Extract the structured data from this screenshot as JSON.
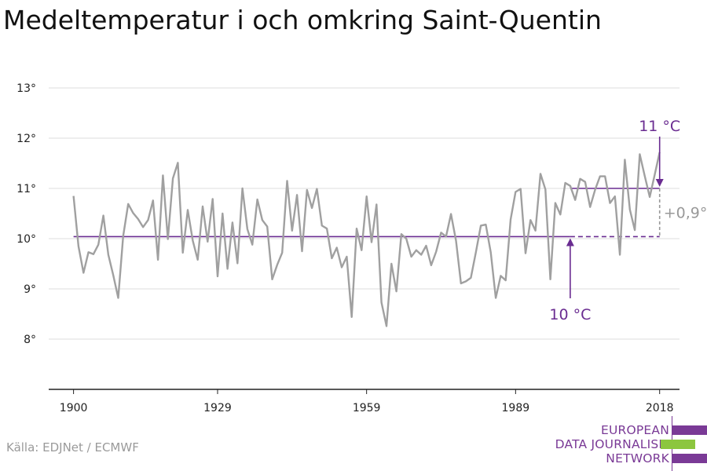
{
  "title": "Medeltemperatur i och omkring Saint-Quentin",
  "source": "Källa: EDJNet / ECMWF",
  "logo": {
    "lines": [
      "EUROPEAN",
      "DATA JOURNALISM",
      "NETWORK"
    ],
    "colors": {
      "purple": "#7a3a96",
      "green": "#8cc63f"
    }
  },
  "colors": {
    "series": "#a0a0a0",
    "reference": "#6a2c91",
    "grid": "#dddddd",
    "axis": "#222222",
    "delta": "#999999"
  },
  "chart_data": {
    "type": "line",
    "xlim": [
      1895,
      2022
    ],
    "ylim": [
      7,
      13.5
    ],
    "x_ticks": [
      1900,
      1929,
      1959,
      1989,
      2018
    ],
    "y_ticks": [
      8,
      9,
      10,
      11,
      12,
      13
    ],
    "y_tick_labels": [
      "8°",
      "9°",
      "10°",
      "11°",
      "12°",
      "13°"
    ],
    "grid": true,
    "series": [
      {
        "x_start": 1900,
        "values": [
          10.85,
          9.85,
          9.32,
          9.73,
          9.69,
          9.88,
          10.46,
          9.68,
          9.27,
          8.82,
          10.05,
          10.69,
          10.51,
          10.39,
          10.23,
          10.37,
          10.76,
          9.58,
          11.26,
          9.99,
          11.2,
          11.51,
          9.72,
          10.57,
          9.96,
          9.58,
          10.64,
          9.94,
          10.79,
          9.25,
          10.5,
          9.4,
          10.32,
          9.51,
          11.0,
          10.19,
          9.88,
          10.78,
          10.37,
          10.24,
          9.19,
          9.48,
          9.72,
          11.15,
          10.16,
          10.87,
          9.75,
          10.97,
          10.61,
          10.99,
          10.26,
          10.2,
          9.61,
          9.82,
          9.43,
          9.64,
          8.44,
          10.2,
          9.77,
          10.84,
          9.93,
          10.68,
          8.73,
          8.26,
          9.5,
          8.95,
          10.09,
          10.0,
          9.64,
          9.77,
          9.68,
          9.86,
          9.47,
          9.74,
          10.12,
          10.04,
          10.49,
          9.96,
          9.11,
          9.15,
          9.22,
          9.73,
          10.26,
          10.28,
          9.73,
          8.82,
          9.26,
          9.17,
          10.38,
          10.93,
          10.99,
          9.71,
          10.37,
          10.16,
          11.29,
          10.98,
          9.19,
          10.71,
          10.48,
          11.11,
          11.05,
          10.77,
          11.19,
          11.13,
          10.63,
          10.97,
          11.24,
          11.24,
          10.71,
          10.84,
          9.68,
          11.57,
          10.58,
          10.17,
          11.68,
          11.25,
          10.83,
          11.27,
          11.72
        ]
      }
    ],
    "reference_line": {
      "value": 10.04,
      "label": "10 °C",
      "from": 1900,
      "solid_to": 2000,
      "dashed_to": 2018
    },
    "recent_line": {
      "value": 11.0,
      "label": "11 °C",
      "from": 2000,
      "to": 2018
    },
    "difference_label": "+0,9°"
  }
}
